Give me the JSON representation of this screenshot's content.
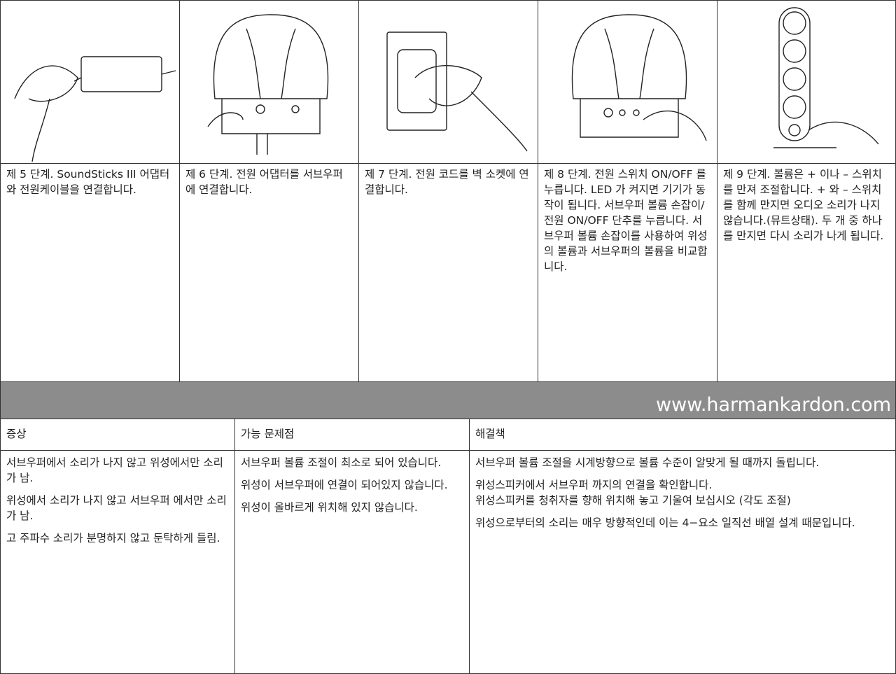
{
  "steps": [
    "제 5 단계. SoundSticks III 어댑터와 전원케이블을 연결합니다.",
    "제 6 단계. 전원 어댑터를 서브우퍼에 연결합니다.",
    "제 7 단계. 전원 코드를 벽 소켓에 연결합니다.",
    "제 8 단계. 전원 스위치 ON/OFF 를 누릅니다. LED 가 켜지면 기기가 동작이 됩니다. 서브우퍼 볼륨 손잡이/전원 ON/OFF 단추를 누릅니다. 서브우퍼 볼륨 손잡이를 사용하여 위성의 볼륨과 서브우퍼의 볼륨을 비교합니다.",
    "제 9 단계. 볼륨은 + 이나 – 스위치를 만져 조절합니다. + 와 – 스위치를 함께 만지면 오디오 소리가 나지 않습니다.(뮤트상태). 두 개 중 하나를 만지면 다시 소리가 나게 됩니다."
  ],
  "url": "www.harmankardon.com",
  "table": {
    "headers": [
      "증상",
      "가능 문제점",
      "해결책"
    ],
    "symptoms": [
      "서브우퍼에서 소리가 나지 않고 위성에서만 소리가 남.",
      "위성에서 소리가 나지 않고 서브우퍼 에서만 소리가 남.",
      "고 주파수 소리가 분명하지 않고 둔탁하게 들림."
    ],
    "problems": [
      "서브우퍼 볼륨 조절이 최소로 되어 있습니다.",
      "위성이 서브우퍼에 연결이 되어있지 않습니다.",
      "위성이 올바르게 위치해 있지 않습니다."
    ],
    "solutions": [
      [
        "서브우퍼 볼륨 조절을 시계방향으로 볼륨 수준이 알맞게 될 때까지 돌립니다."
      ],
      [
        "위성스피커에서 서브우퍼 까지의 연결을 확인합니다.",
        "위성스피커를 청취자를 향해 위치해 놓고 기울여 보십시오 (각도 조절)"
      ],
      [
        "위성으로부터의 소리는 매우 방향적인데 이는 4−요소 일직선 배열 설계 때문입니다."
      ]
    ]
  }
}
